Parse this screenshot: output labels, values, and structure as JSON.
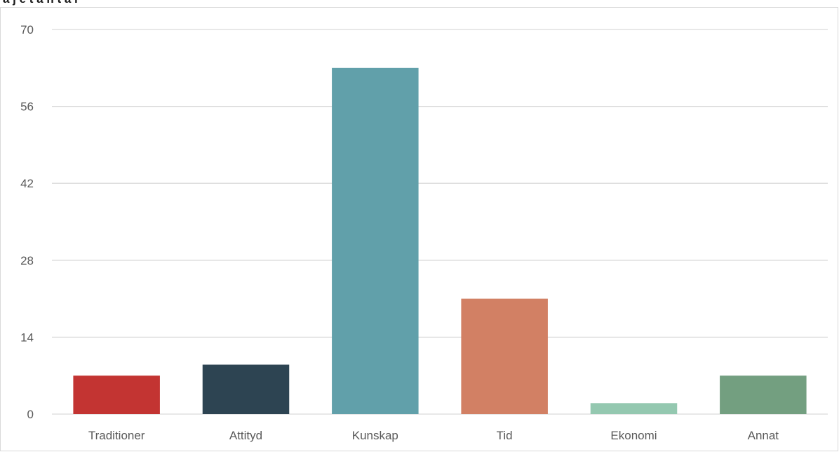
{
  "chart_data": {
    "type": "bar",
    "title": "",
    "xlabel": "",
    "ylabel": "",
    "categories": [
      "Traditioner",
      "Attityd",
      "Kunskap",
      "Tid",
      "Ekonomi",
      "Annat"
    ],
    "values": [
      7,
      9,
      63,
      21,
      2,
      7
    ],
    "bar_colors": [
      "#c33432",
      "#2d4452",
      "#61a0aa",
      "#d28064",
      "#94c8b0",
      "#739f80"
    ],
    "ylim": [
      0,
      70
    ],
    "yticks": [
      "0",
      "14",
      "28",
      "42",
      "56",
      "70"
    ],
    "grid": true,
    "gridline_color": "#d9d9d9"
  }
}
